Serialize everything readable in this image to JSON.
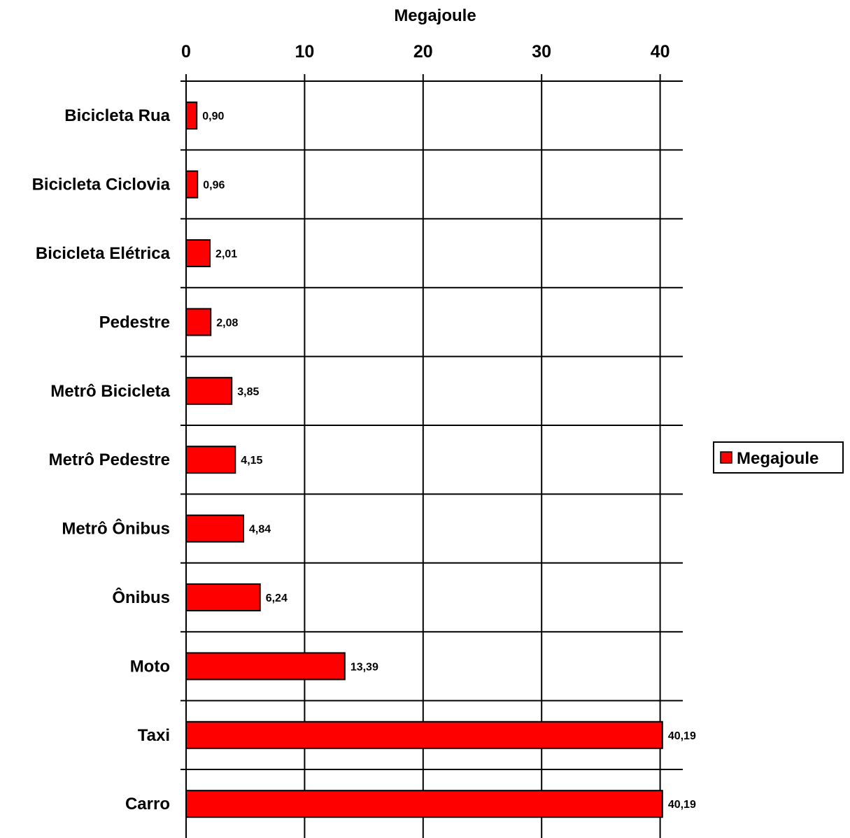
{
  "chart_data": {
    "type": "bar",
    "orientation": "horizontal",
    "xlabel": "Megajoule",
    "x_axis_position": "top",
    "xlim": [
      0,
      41.5
    ],
    "xticks": [
      0,
      10,
      20,
      30,
      40
    ],
    "grid": true,
    "legend_position": "right",
    "bar_color": "#ff0000",
    "categories": [
      "Bicicleta Rua",
      "Bicicleta Ciclovia",
      "Bicicleta Elétrica",
      "Pedestre",
      "Metrô Bicicleta",
      "Metrô Pedestre",
      "Metrô Ônibus",
      "Ônibus",
      "Moto",
      "Taxi",
      "Carro"
    ],
    "series": [
      {
        "name": "Megajoule",
        "values": [
          0.9,
          0.96,
          2.01,
          2.08,
          3.85,
          4.15,
          4.84,
          6.24,
          13.39,
          40.19,
          40.19
        ],
        "data_labels": [
          "0,90",
          "0,96",
          "2,01",
          "2,08",
          "3,85",
          "4,15",
          "4,84",
          "6,24",
          "13,39",
          "40,19",
          "40,19"
        ]
      }
    ]
  }
}
